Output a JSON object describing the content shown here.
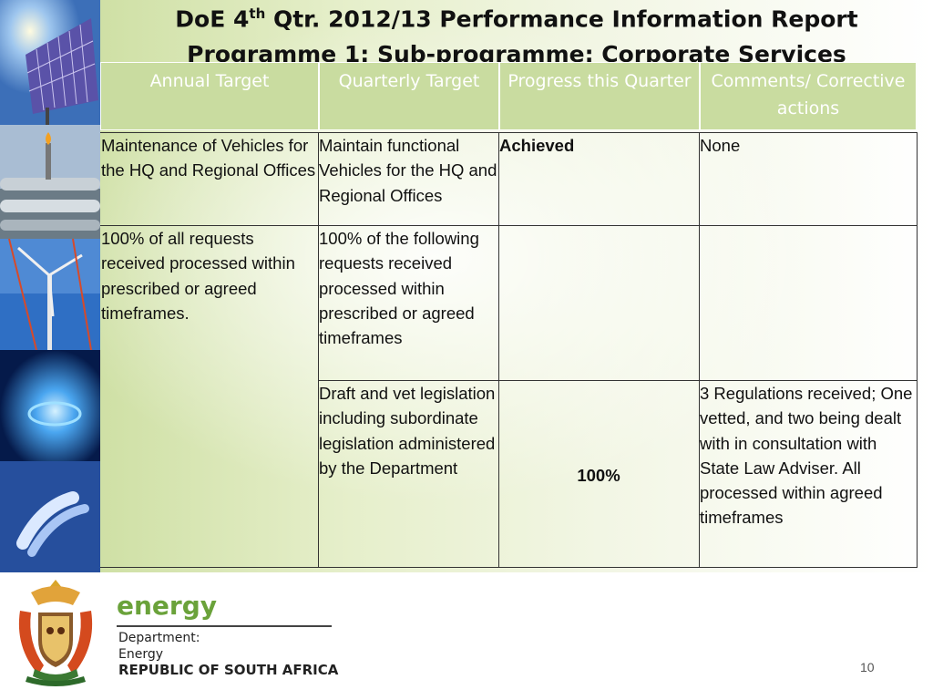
{
  "title": {
    "line1_pre": "DoE 4",
    "line1_sup": "th",
    "line1_post": " Qtr. 2012/13 Performance Information Report",
    "line2": "Programme 1: Sub-programme: Corporate Services"
  },
  "table": {
    "headers": {
      "annual": "Annual Target",
      "quarterly": "Quarterly Target",
      "progress": "Progress this Quarter",
      "comments": "Comments/ Corrective actions"
    },
    "rows": [
      {
        "annual": "Maintenance of Vehicles for the  HQ and Regional Offices",
        "quarterly": "Maintain  functional Vehicles for the  HQ and Regional Offices",
        "progress": "Achieved",
        "comments": "None"
      },
      {
        "annual": "100% of all requests received processed within prescribed or agreed timeframes.",
        "quarterly": "100% of the following requests received processed within prescribed or agreed timeframes",
        "progress": "",
        "comments": ""
      },
      {
        "quarterly": "Draft and vet legislation including  subordinate legislation administered by the Department",
        "progress": "100%",
        "comments": "3 Regulations received; One vetted, and two being dealt with in consultation with State Law Adviser.  All processed within agreed timeframes"
      }
    ]
  },
  "footer": {
    "brand": "energy",
    "dept1": "Department:",
    "dept2": "Energy",
    "country": "REPUBLIC OF SOUTH AFRICA",
    "page_number": "10"
  },
  "colors": {
    "header_bg": "#c9dca0",
    "brand_green": "#6aa23a"
  },
  "icons": [
    "solar-panel-photo",
    "pipeline-photo",
    "wind-turbine-photo",
    "gas-flame-photo",
    "fluorescent-bulb-photo",
    "coat-of-arms-icon"
  ]
}
